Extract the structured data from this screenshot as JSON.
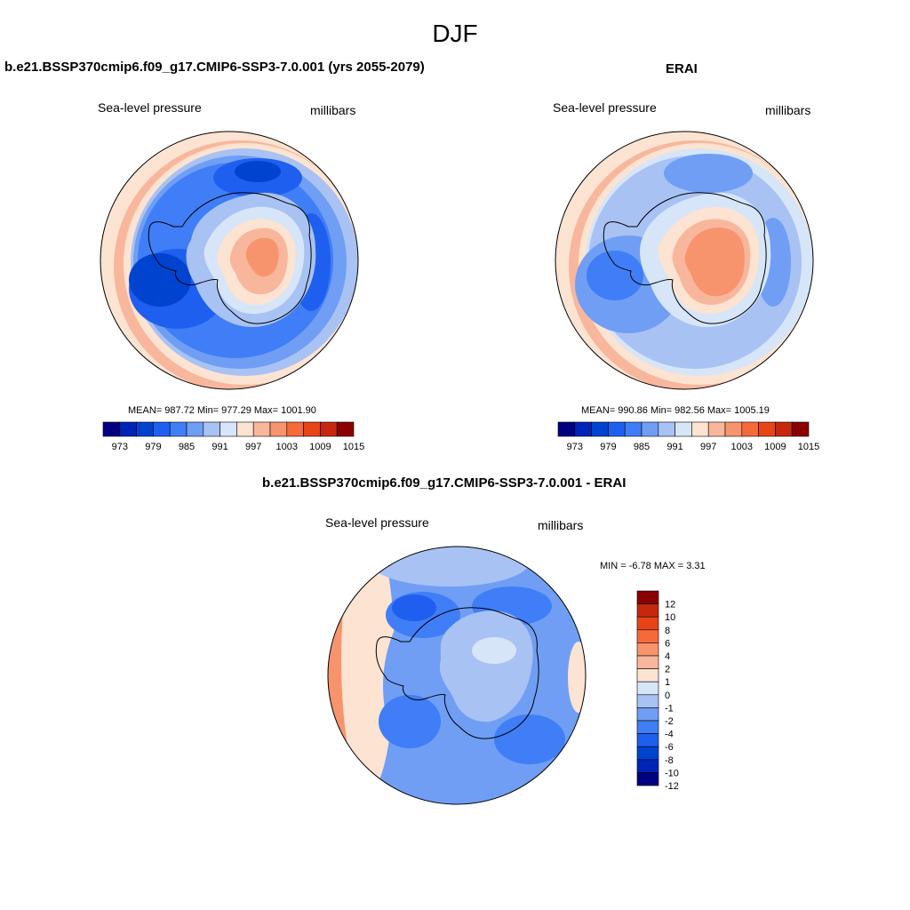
{
  "title": "DJF",
  "colors": {
    "ramp": [
      "#000080",
      "#0024b5",
      "#0043cf",
      "#1f5ff0",
      "#3f7ef6",
      "#6f9ef4",
      "#a8c2f4",
      "#d6e5f8",
      "#fde3d2",
      "#f8b79c",
      "#f7946e",
      "#f56a3a",
      "#e74418",
      "#c5280e",
      "#8b0000"
    ],
    "diff_ramp": [
      "#000080",
      "#0024b5",
      "#0043cf",
      "#1f5ff0",
      "#3f7ef6",
      "#6f9ef4",
      "#a8c2f4",
      "#d6e5f8",
      "#fde3d2",
      "#f8b79c",
      "#f7946e",
      "#f56a3a",
      "#e74418",
      "#c5280e",
      "#8b0000"
    ]
  },
  "panels": [
    {
      "title": "b.e21.BSSP370cmip6.f09_g17.CMIP6-SSP3-7.0.001 (yrs 2055-2079)",
      "left_label": "Sea-level pressure",
      "right_label": "millibars",
      "stats": "MEAN= 987.72  Min= 977.29  Max= 1001.90",
      "colorbar_labels": [
        "973",
        "979",
        "985",
        "991",
        "997",
        "1003",
        "1009",
        "1015"
      ]
    },
    {
      "title": "ERAI",
      "left_label": "Sea-level pressure",
      "right_label": "millibars",
      "stats": "MEAN= 990.86  Min= 982.56  Max= 1005.19",
      "colorbar_labels": [
        "973",
        "979",
        "985",
        "991",
        "997",
        "1003",
        "1009",
        "1015"
      ]
    },
    {
      "title": "b.e21.BSSP370cmip6.f09_g17.CMIP6-SSP3-7.0.001 - ERAI",
      "left_label": "Sea-level pressure",
      "right_label": "millibars",
      "stats": "MIN =  -6.78 MAX =   3.31",
      "colorbar_labels": [
        "12",
        "10",
        "8",
        "6",
        "4",
        "2",
        "1",
        "0",
        "-1",
        "-2",
        "-4",
        "-6",
        "-8",
        "-10",
        "-12"
      ]
    }
  ]
}
